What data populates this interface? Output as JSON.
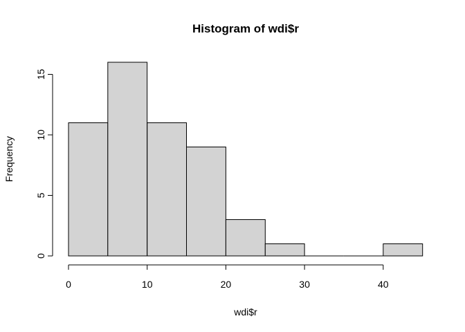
{
  "chart_data": {
    "type": "bar",
    "title": "Histogram of wdi$r",
    "xlabel": "wdi$r",
    "ylabel": "Frequency",
    "bins": [
      {
        "from": 0,
        "to": 5,
        "count": 11
      },
      {
        "from": 5,
        "to": 10,
        "count": 16
      },
      {
        "from": 10,
        "to": 15,
        "count": 11
      },
      {
        "from": 15,
        "to": 20,
        "count": 9
      },
      {
        "from": 20,
        "to": 25,
        "count": 3
      },
      {
        "from": 25,
        "to": 30,
        "count": 1
      },
      {
        "from": 30,
        "to": 35,
        "count": 0
      },
      {
        "from": 35,
        "to": 40,
        "count": 0
      },
      {
        "from": 40,
        "to": 45,
        "count": 1
      }
    ],
    "xlim": [
      0,
      45
    ],
    "ylim": [
      0,
      16
    ],
    "xticks": [
      0,
      10,
      20,
      30,
      40
    ],
    "yticks": [
      0,
      5,
      10,
      15
    ],
    "grid": false,
    "bar_color": "#d3d3d3",
    "edge_color": "#000000"
  }
}
